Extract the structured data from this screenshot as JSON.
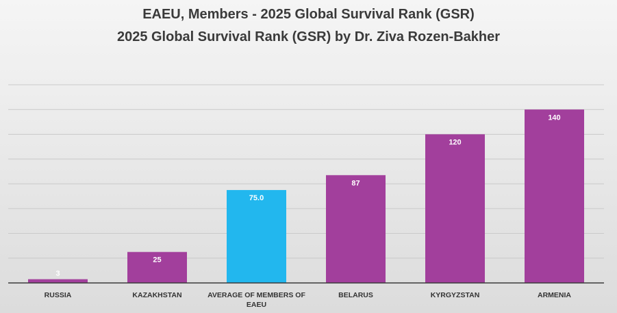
{
  "chart_data": {
    "type": "bar",
    "title": "EAEU, Members - 2025 Global Survival Rank (GSR)",
    "subtitle": "2025 Global Survival Rank (GSR) by Dr. Ziva Rozen-Bakher",
    "xlabel": "",
    "ylabel": "",
    "ylim": [
      0,
      160
    ],
    "grid": true,
    "categories": [
      {
        "lines": [
          "RUSSIA"
        ]
      },
      {
        "lines": [
          "KAZAKHSTAN"
        ]
      },
      {
        "lines": [
          "AVERAGE OF MEMBERS OF",
          "EAEU"
        ]
      },
      {
        "lines": [
          "BELARUS"
        ]
      },
      {
        "lines": [
          "KYRGYZSTAN"
        ]
      },
      {
        "lines": [
          "ARMENIA"
        ]
      }
    ],
    "values": [
      3,
      25,
      75.0,
      87,
      120,
      140
    ],
    "data_labels": [
      "3",
      "25",
      "75.0",
      "87",
      "120",
      "140"
    ],
    "colors": [
      "#a23f9c",
      "#a23f9c",
      "#22b7ee",
      "#a23f9c",
      "#a23f9c",
      "#a23f9c"
    ]
  }
}
